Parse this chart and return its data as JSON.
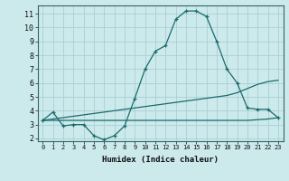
{
  "xlabel": "Humidex (Indice chaleur)",
  "background_color": "#cce9ec",
  "grid_color": "#aacfd4",
  "line_color": "#1a6b6b",
  "xlim": [
    -0.5,
    23.5
  ],
  "ylim": [
    1.8,
    11.6
  ],
  "yticks": [
    2,
    3,
    4,
    5,
    6,
    7,
    8,
    9,
    10,
    11
  ],
  "xticks": [
    0,
    1,
    2,
    3,
    4,
    5,
    6,
    7,
    8,
    9,
    10,
    11,
    12,
    13,
    14,
    15,
    16,
    17,
    18,
    19,
    20,
    21,
    22,
    23
  ],
  "line1_x": [
    0,
    1,
    2,
    3,
    4,
    5,
    6,
    7,
    8,
    9,
    10,
    11,
    12,
    13,
    14,
    15,
    16,
    17,
    18,
    19,
    20,
    21,
    22,
    23
  ],
  "line1_y": [
    3.3,
    3.9,
    2.9,
    3.0,
    3.0,
    2.2,
    1.9,
    2.2,
    2.9,
    4.9,
    7.0,
    8.3,
    8.7,
    10.6,
    11.2,
    11.2,
    10.8,
    9.0,
    7.0,
    6.0,
    4.2,
    4.1,
    4.1,
    3.5
  ],
  "line2_x": [
    0,
    1,
    2,
    3,
    4,
    5,
    6,
    7,
    8,
    9,
    10,
    11,
    12,
    13,
    14,
    15,
    16,
    17,
    18,
    19,
    20,
    21,
    22,
    23
  ],
  "line2_y": [
    3.3,
    3.3,
    3.3,
    3.3,
    3.3,
    3.3,
    3.3,
    3.3,
    3.3,
    3.3,
    3.3,
    3.3,
    3.3,
    3.3,
    3.3,
    3.3,
    3.3,
    3.3,
    3.3,
    3.3,
    3.3,
    3.35,
    3.4,
    3.5
  ],
  "line3_x": [
    0,
    1,
    2,
    3,
    4,
    5,
    6,
    7,
    8,
    9,
    10,
    11,
    12,
    13,
    14,
    15,
    16,
    17,
    18,
    19,
    20,
    21,
    22,
    23
  ],
  "line3_y": [
    3.3,
    3.4,
    3.5,
    3.6,
    3.7,
    3.8,
    3.9,
    4.0,
    4.1,
    4.2,
    4.3,
    4.4,
    4.5,
    4.6,
    4.7,
    4.8,
    4.9,
    5.0,
    5.1,
    5.3,
    5.6,
    5.9,
    6.1,
    6.2
  ]
}
